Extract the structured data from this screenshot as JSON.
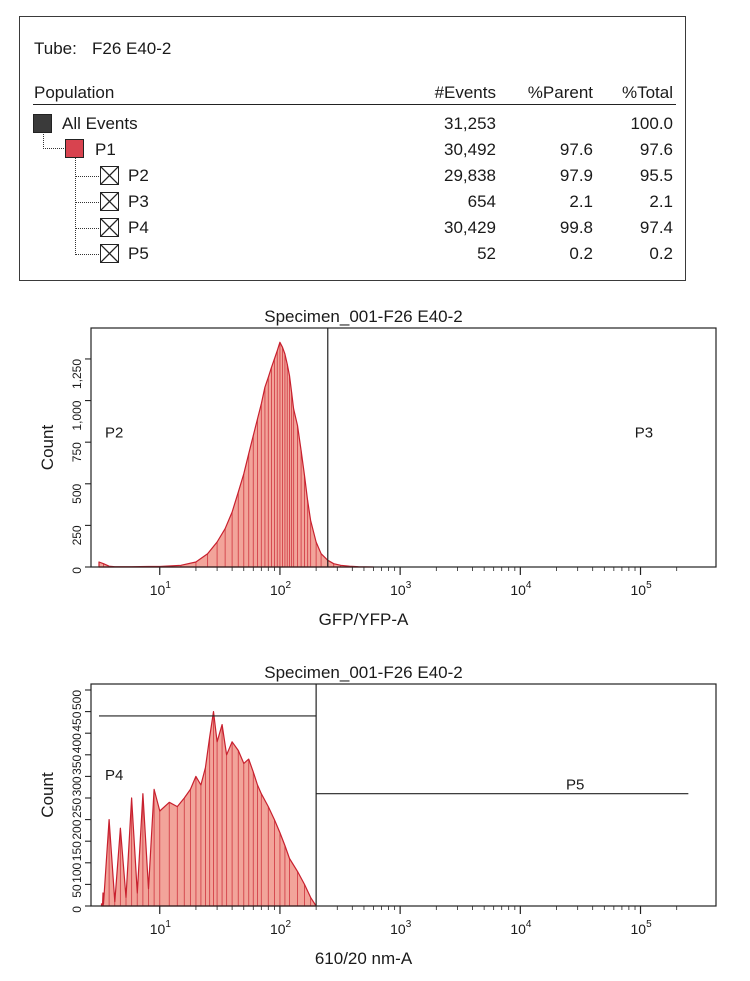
{
  "stats_table": {
    "tube_label": "Tube:",
    "tube_name": "F26 E40-2",
    "headers": {
      "population": "Population",
      "events": "#Events",
      "parent": "%Parent",
      "total": "%Total"
    },
    "rows": [
      {
        "name": "All Events",
        "events": "31,253",
        "parent": "",
        "total": "100.0",
        "swatch": "#3a3a3a"
      },
      {
        "name": "P1",
        "events": "30,492",
        "parent": "97.6",
        "total": "97.6",
        "swatch": "#d8434f"
      },
      {
        "name": "P2",
        "events": "29,838",
        "parent": "97.9",
        "total": "95.5",
        "swatch": "none"
      },
      {
        "name": "P3",
        "events": "654",
        "parent": "2.1",
        "total": "2.1",
        "swatch": "none"
      },
      {
        "name": "P4",
        "events": "30,429",
        "parent": "99.8",
        "total": "97.4",
        "swatch": "none"
      },
      {
        "name": "P5",
        "events": "52",
        "parent": "0.2",
        "total": "0.2",
        "swatch": "none"
      }
    ]
  },
  "colors": {
    "fill": "#f2a49a",
    "stroke": "#c8202e",
    "axis": "#222222"
  },
  "chart_data": [
    {
      "type": "histogram",
      "title": "Specimen_001-F26 E40-2",
      "xlabel": "GFP/YFP-A",
      "ylabel": "Count",
      "xscale": "log",
      "xlim": [
        -45,
        250000
      ],
      "ylim": [
        0,
        1400
      ],
      "xticks": [
        {
          "value": 10,
          "base": "10",
          "exp": "1"
        },
        {
          "value": 100,
          "base": "10",
          "exp": "2"
        },
        {
          "value": 1000,
          "base": "10",
          "exp": "3"
        },
        {
          "value": 10000,
          "base": "10",
          "exp": "4"
        },
        {
          "value": 100000,
          "base": "10",
          "exp": "5"
        }
      ],
      "yticks": [
        {
          "value": 0,
          "label": "0"
        },
        {
          "value": 250,
          "label": "250"
        },
        {
          "value": 500,
          "label": "500"
        },
        {
          "value": 750,
          "label": "750"
        },
        {
          "value": 1000,
          "label": "1,000"
        },
        {
          "value": 1250,
          "label": "1,250"
        }
      ],
      "gates": [
        {
          "name": "P2",
          "x_range": [
            -45,
            250
          ]
        },
        {
          "name": "P3",
          "x_range": [
            250,
            250000
          ]
        }
      ],
      "histogram": {
        "x": [
          -45,
          0,
          1,
          2,
          3,
          5,
          8,
          10,
          15,
          20,
          25,
          30,
          35,
          40,
          45,
          50,
          55,
          60,
          65,
          70,
          75,
          80,
          85,
          90,
          95,
          100,
          105,
          110,
          115,
          120,
          125,
          130,
          140,
          150,
          160,
          170,
          180,
          200,
          220,
          250,
          280,
          320,
          380,
          450,
          600
        ],
        "counts": [
          30,
          20,
          5,
          2,
          2,
          2,
          3,
          3,
          10,
          30,
          80,
          150,
          230,
          330,
          450,
          560,
          680,
          790,
          890,
          980,
          1080,
          1140,
          1200,
          1250,
          1300,
          1350,
          1320,
          1280,
          1220,
          1150,
          1050,
          950,
          850,
          700,
          550,
          400,
          280,
          150,
          80,
          40,
          20,
          10,
          5,
          2,
          0
        ]
      }
    },
    {
      "type": "histogram",
      "title": "Specimen_001-F26 E40-2",
      "xlabel": "610/20 nm-A",
      "ylabel": "Count",
      "xscale": "log",
      "xlim": [
        -45,
        250000
      ],
      "ylim": [
        0,
        500
      ],
      "xticks": [
        {
          "value": 10,
          "base": "10",
          "exp": "1"
        },
        {
          "value": 100,
          "base": "10",
          "exp": "2"
        },
        {
          "value": 1000,
          "base": "10",
          "exp": "3"
        },
        {
          "value": 10000,
          "base": "10",
          "exp": "4"
        },
        {
          "value": 100000,
          "base": "10",
          "exp": "5"
        }
      ],
      "yticks": [
        {
          "value": 0,
          "label": "0"
        },
        {
          "value": 50,
          "label": "50"
        },
        {
          "value": 100,
          "label": "100"
        },
        {
          "value": 150,
          "label": "150"
        },
        {
          "value": 200,
          "label": "200"
        },
        {
          "value": 250,
          "label": "250"
        },
        {
          "value": 300,
          "label": "300"
        },
        {
          "value": 350,
          "label": "350"
        },
        {
          "value": 400,
          "label": "400"
        },
        {
          "value": 450,
          "label": "450"
        },
        {
          "value": 500,
          "label": "500"
        }
      ],
      "gates": [
        {
          "name": "P4",
          "x_range": [
            -45,
            200
          ],
          "level": 440
        },
        {
          "name": "P5",
          "x_range": [
            200,
            250000
          ],
          "level": 260
        }
      ],
      "histogram": {
        "x": [
          -20,
          -10,
          -5,
          0,
          1,
          2,
          3,
          4,
          5,
          6,
          7,
          8,
          9,
          10,
          12,
          14,
          16,
          18,
          20,
          22,
          24,
          26,
          28,
          30,
          33,
          36,
          40,
          45,
          50,
          55,
          60,
          65,
          70,
          80,
          90,
          100,
          110,
          120,
          140,
          160,
          180,
          200
        ],
        "counts": [
          5,
          0,
          30,
          5,
          200,
          10,
          180,
          20,
          250,
          30,
          260,
          40,
          270,
          220,
          240,
          230,
          250,
          270,
          300,
          280,
          320,
          390,
          450,
          380,
          420,
          350,
          380,
          360,
          330,
          340,
          310,
          280,
          260,
          230,
          200,
          170,
          140,
          110,
          80,
          50,
          20,
          0
        ]
      }
    }
  ]
}
